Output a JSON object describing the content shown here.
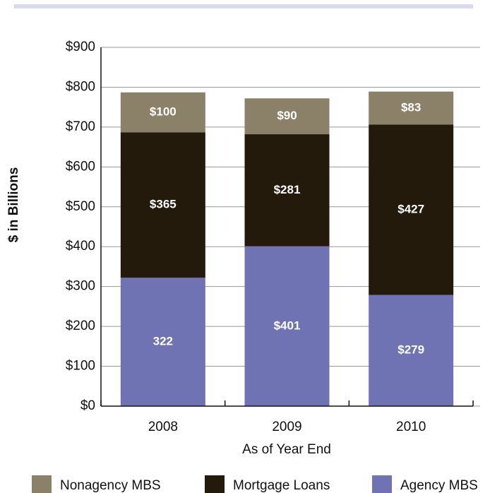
{
  "chart_data": {
    "type": "stacked_bar",
    "y_label": "$ in Billions",
    "x_label": "As of Year End",
    "categories": [
      "2008",
      "2009",
      "2010"
    ],
    "series": [
      {
        "name": "Agency MBS",
        "color": "#6f73b4",
        "values": [
          322,
          401,
          279
        ],
        "value_labels": [
          "322",
          "$401",
          "$279"
        ]
      },
      {
        "name": "Mortgage Loans",
        "color": "#231a0c",
        "values": [
          365,
          281,
          427
        ],
        "value_labels": [
          "$365",
          "$281",
          "$427"
        ]
      },
      {
        "name": "Nonagency MBS",
        "color": "#8b8068",
        "values": [
          100,
          90,
          83
        ],
        "value_labels": [
          "$100",
          "$90",
          "$83"
        ]
      }
    ],
    "legend_order": [
      2,
      1,
      0
    ],
    "ylim": [
      0,
      900
    ],
    "yticks": [
      {
        "value": 0,
        "label": "$0"
      },
      {
        "value": 100,
        "label": "$100"
      },
      {
        "value": 200,
        "label": "$200"
      },
      {
        "value": 300,
        "label": "$300"
      },
      {
        "value": 400,
        "label": "$400"
      },
      {
        "value": 500,
        "label": "$500"
      },
      {
        "value": 600,
        "label": "$600"
      },
      {
        "value": 700,
        "label": "$700"
      },
      {
        "value": 800,
        "label": "$800"
      },
      {
        "value": 900,
        "label": "$900"
      }
    ],
    "grid": true
  }
}
